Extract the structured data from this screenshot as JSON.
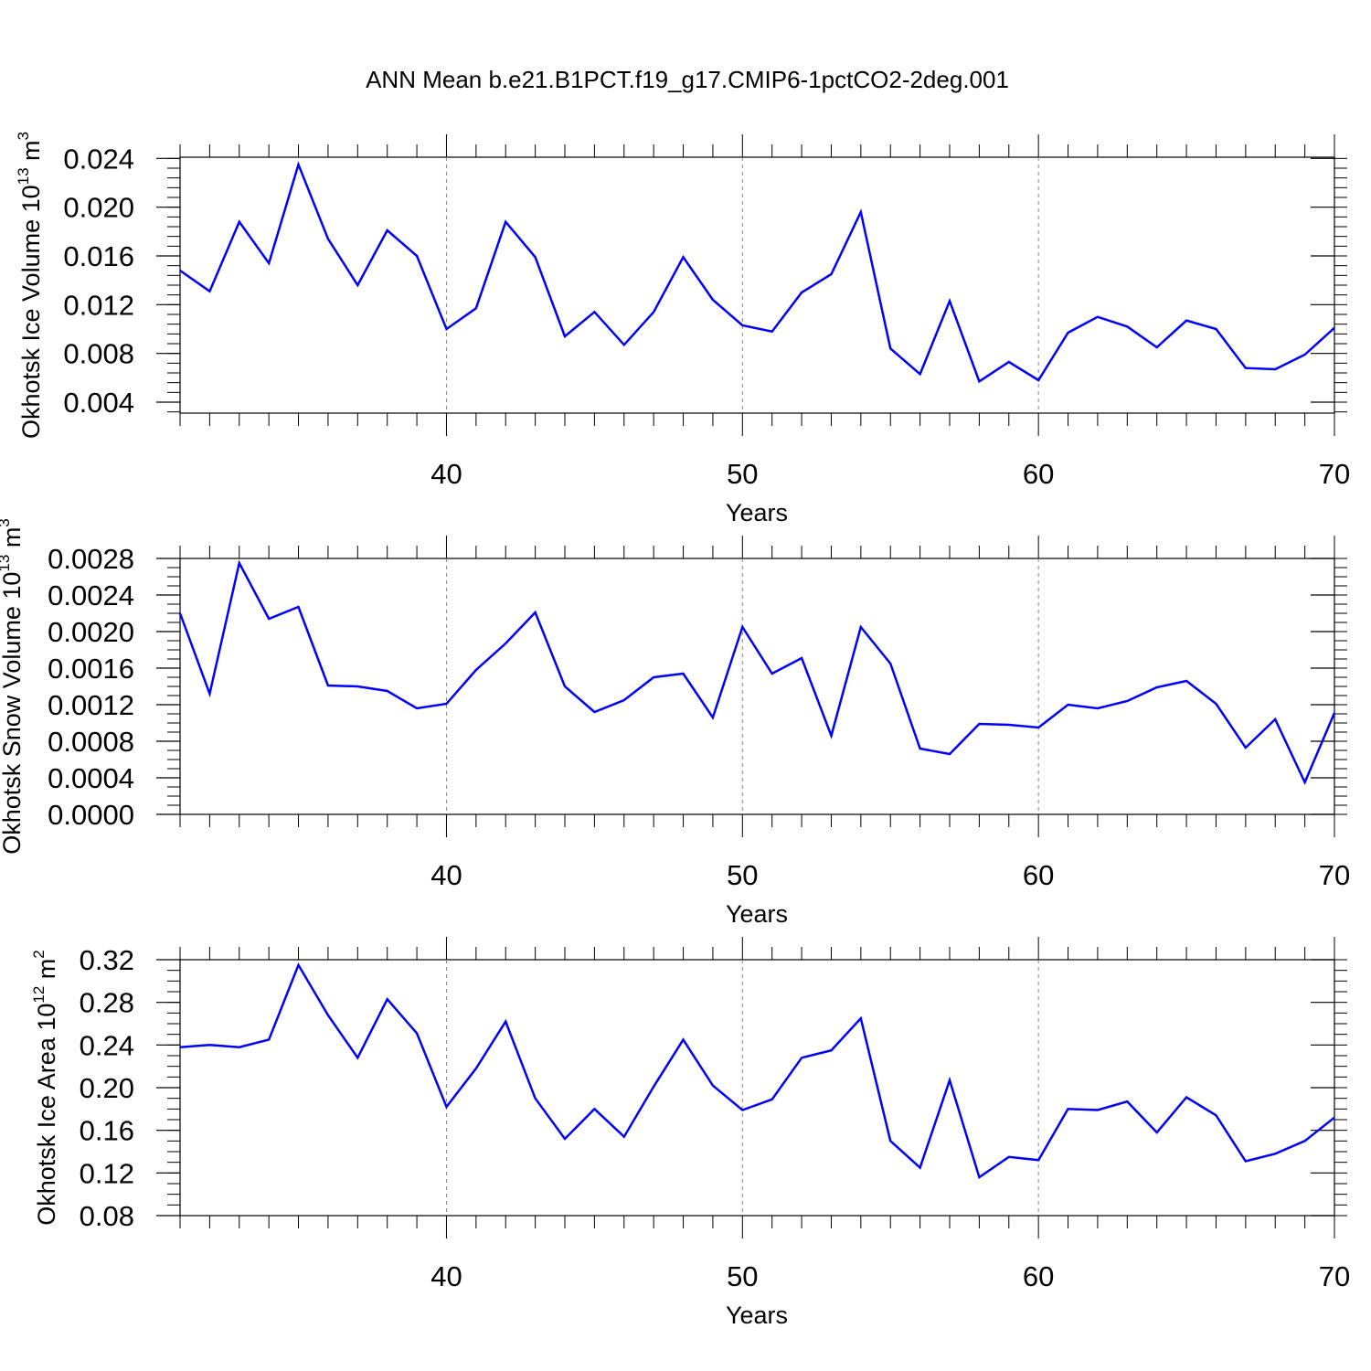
{
  "figure": {
    "title": "ANN Mean b.e21.B1PCT.f19_g17.CMIP6-1pctCO2-2deg.001",
    "line_color": "#0000ff",
    "grid_color": "#888888"
  },
  "chart_data": [
    {
      "type": "line",
      "title": "",
      "xlabel": "Years",
      "ylabel": {
        "text": "Okhotsk Ice Volume 10",
        "sup1": "13",
        "unit": " m",
        "sup2": "3"
      },
      "xlim": [
        31,
        70
      ],
      "ylim": [
        0.0031,
        0.0241
      ],
      "x_ticks": [
        40,
        50,
        60,
        70
      ],
      "x_tick_labels": [
        "40",
        "50",
        "60",
        "70"
      ],
      "x_minor_step": 1,
      "y_ticks": [
        0.004,
        0.008,
        0.012,
        0.016,
        0.02,
        0.024
      ],
      "y_tick_labels": [
        "0.004",
        "0.008",
        "0.012",
        "0.016",
        "0.020",
        "0.024"
      ],
      "y_minor_step": 0.0008,
      "grid": "vertical dashed at major x ticks",
      "series": [
        {
          "x": [
            31,
            32,
            33,
            34,
            35,
            36,
            37,
            38,
            39,
            40,
            41,
            42,
            43,
            44,
            45,
            46,
            47,
            48,
            49,
            50,
            51,
            52,
            53,
            54,
            55,
            56,
            57,
            58,
            59,
            60,
            61,
            62,
            63,
            64,
            65,
            66,
            67,
            68,
            69,
            70
          ],
          "values": [
            0.0148,
            0.0131,
            0.0188,
            0.0154,
            0.0235,
            0.0174,
            0.0136,
            0.0181,
            0.016,
            0.01,
            0.0117,
            0.0188,
            0.0159,
            0.0094,
            0.0114,
            0.0087,
            0.0114,
            0.0159,
            0.0124,
            0.0103,
            0.0098,
            0.013,
            0.0145,
            0.0196,
            0.0084,
            0.0063,
            0.0123,
            0.0057,
            0.0073,
            0.0058,
            0.0097,
            0.011,
            0.0102,
            0.0085,
            0.0107,
            0.01,
            0.0068,
            0.0067,
            0.0079,
            0.0101
          ]
        }
      ]
    },
    {
      "type": "line",
      "title": "",
      "xlabel": "Years",
      "ylabel": {
        "text": "Okhotsk Snow Volume 10",
        "sup1": "13",
        "unit": " m",
        "sup2": "3"
      },
      "xlim": [
        31,
        70
      ],
      "ylim": [
        0.0,
        0.0028
      ],
      "x_ticks": [
        40,
        50,
        60,
        70
      ],
      "x_tick_labels": [
        "40",
        "50",
        "60",
        "70"
      ],
      "x_minor_step": 1,
      "y_ticks": [
        0.0,
        0.0004,
        0.0008,
        0.0012,
        0.0016,
        0.002,
        0.0024,
        0.0028
      ],
      "y_tick_labels": [
        "0.0000",
        "0.0004",
        "0.0008",
        "0.0012",
        "0.0016",
        "0.0020",
        "0.0024",
        "0.0028"
      ],
      "y_minor_step": 0.0001,
      "grid": "vertical dashed at major x ticks",
      "series": [
        {
          "x": [
            31,
            32,
            33,
            34,
            35,
            36,
            37,
            38,
            39,
            40,
            41,
            42,
            43,
            44,
            45,
            46,
            47,
            48,
            49,
            50,
            51,
            52,
            53,
            54,
            55,
            56,
            57,
            58,
            59,
            60,
            61,
            62,
            63,
            64,
            65,
            66,
            67,
            68,
            69,
            70
          ],
          "values": [
            0.0022,
            0.00132,
            0.00275,
            0.00214,
            0.00227,
            0.00141,
            0.0014,
            0.00135,
            0.00116,
            0.00121,
            0.00158,
            0.00187,
            0.00221,
            0.0014,
            0.00112,
            0.00125,
            0.0015,
            0.00154,
            0.00106,
            0.00205,
            0.00154,
            0.00171,
            0.00086,
            0.00205,
            0.00165,
            0.00072,
            0.00066,
            0.00099,
            0.00098,
            0.00095,
            0.0012,
            0.00116,
            0.00124,
            0.00139,
            0.00146,
            0.00121,
            0.00073,
            0.00104,
            0.00035,
            0.00111
          ]
        }
      ]
    },
    {
      "type": "line",
      "title": "",
      "xlabel": "Years",
      "ylabel": {
        "text": "Okhotsk Ice Area 10",
        "sup1": "12",
        "unit": " m",
        "sup2": "2"
      },
      "xlim": [
        31,
        70
      ],
      "ylim": [
        0.08,
        0.32
      ],
      "x_ticks": [
        40,
        50,
        60,
        70
      ],
      "x_tick_labels": [
        "40",
        "50",
        "60",
        "70"
      ],
      "x_minor_step": 1,
      "y_ticks": [
        0.08,
        0.12,
        0.16,
        0.2,
        0.24,
        0.28,
        0.32
      ],
      "y_tick_labels": [
        "0.08",
        "0.12",
        "0.16",
        "0.20",
        "0.24",
        "0.28",
        "0.32"
      ],
      "y_minor_step": 0.01,
      "grid": "vertical dashed at major x ticks",
      "series": [
        {
          "x": [
            31,
            32,
            33,
            34,
            35,
            36,
            37,
            38,
            39,
            40,
            41,
            42,
            43,
            44,
            45,
            46,
            47,
            48,
            49,
            50,
            51,
            52,
            53,
            54,
            55,
            56,
            57,
            58,
            59,
            60,
            61,
            62,
            63,
            64,
            65,
            66,
            67,
            68,
            69,
            70
          ],
          "values": [
            0.238,
            0.24,
            0.238,
            0.245,
            0.315,
            0.268,
            0.228,
            0.283,
            0.251,
            0.182,
            0.218,
            0.262,
            0.19,
            0.152,
            0.18,
            0.154,
            0.201,
            0.245,
            0.202,
            0.179,
            0.189,
            0.228,
            0.235,
            0.265,
            0.15,
            0.125,
            0.207,
            0.116,
            0.135,
            0.132,
            0.18,
            0.179,
            0.187,
            0.158,
            0.191,
            0.174,
            0.131,
            0.138,
            0.15,
            0.172
          ]
        }
      ]
    }
  ]
}
